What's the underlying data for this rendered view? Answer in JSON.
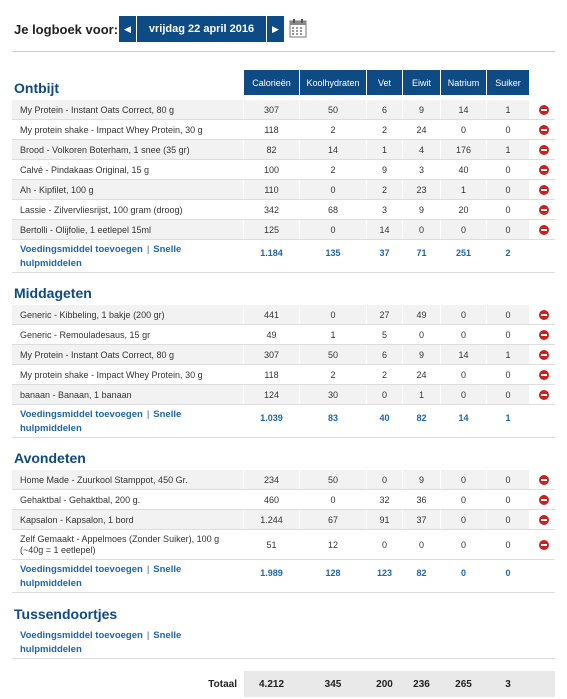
{
  "header": {
    "label": "Je logboek voor:",
    "date": "vrijdag 22 april 2016",
    "prev": "◀",
    "next": "▶",
    "calendar_icon": "calendar-icon"
  },
  "columns": [
    "Calorieën",
    "Koolhydraten",
    "Vet",
    "Eiwit",
    "Natrium",
    "Suiker"
  ],
  "add_link": "Voedingsmiddel toevoegen",
  "quick_link": "Snelle hulpmiddelen",
  "sections": [
    {
      "title": "Ontbijt",
      "rows": [
        {
          "name": "My Protein - Instant Oats Correct, 80 g",
          "v": [
            "307",
            "50",
            "6",
            "9",
            "14",
            "1"
          ]
        },
        {
          "name": "My protein shake - Impact Whey Protein, 30 g",
          "v": [
            "118",
            "2",
            "2",
            "24",
            "0",
            "0"
          ]
        },
        {
          "name": "Brood - Volkoren Boterham, 1 snee (35 gr)",
          "v": [
            "82",
            "14",
            "1",
            "4",
            "176",
            "1"
          ]
        },
        {
          "name": "Calvé - Pindakaas Original, 15 g",
          "v": [
            "100",
            "2",
            "9",
            "3",
            "40",
            "0"
          ]
        },
        {
          "name": "Ah - Kipfilet, 100 g",
          "v": [
            "110",
            "0",
            "2",
            "23",
            "1",
            "0"
          ]
        },
        {
          "name": "Lassie - Zilvervliesrijst, 100 gram (droog)",
          "v": [
            "342",
            "68",
            "3",
            "9",
            "20",
            "0"
          ]
        },
        {
          "name": "Bertolli - Olijfolie, 1 eetlepel 15ml",
          "v": [
            "125",
            "0",
            "14",
            "0",
            "0",
            "0"
          ]
        }
      ],
      "totals": [
        "1.184",
        "135",
        "37",
        "71",
        "251",
        "2"
      ]
    },
    {
      "title": "Middageten",
      "rows": [
        {
          "name": "Generic - Kibbeling, 1 bakje (200 gr)",
          "v": [
            "441",
            "0",
            "27",
            "49",
            "0",
            "0"
          ]
        },
        {
          "name": "Generic - Remouladesaus, 15 gr",
          "v": [
            "49",
            "1",
            "5",
            "0",
            "0",
            "0"
          ]
        },
        {
          "name": "My Protein - Instant Oats Correct, 80 g",
          "v": [
            "307",
            "50",
            "6",
            "9",
            "14",
            "1"
          ]
        },
        {
          "name": "My protein shake - Impact Whey Protein, 30 g",
          "v": [
            "118",
            "2",
            "2",
            "24",
            "0",
            "0"
          ]
        },
        {
          "name": "banaan - Banaan, 1 banaan",
          "v": [
            "124",
            "30",
            "0",
            "1",
            "0",
            "0"
          ]
        }
      ],
      "totals": [
        "1.039",
        "83",
        "40",
        "82",
        "14",
        "1"
      ]
    },
    {
      "title": "Avondeten",
      "rows": [
        {
          "name": "Home Made - Zuurkool Stamppot, 450 Gr.",
          "v": [
            "234",
            "50",
            "0",
            "9",
            "0",
            "0"
          ]
        },
        {
          "name": "Gehaktbal - Gehaktbal, 200 g.",
          "v": [
            "460",
            "0",
            "32",
            "36",
            "0",
            "0"
          ]
        },
        {
          "name": "Kapsalon - Kapsalon, 1 bord",
          "v": [
            "1.244",
            "67",
            "91",
            "37",
            "0",
            "0"
          ]
        },
        {
          "name": "Zelf Gemaakt - Appelmoes (Zonder Suiker), 100 g (~40g = 1 eetlepel)",
          "v": [
            "51",
            "12",
            "0",
            "0",
            "0",
            "0"
          ]
        }
      ],
      "totals": [
        "1.989",
        "128",
        "123",
        "82",
        "0",
        "0"
      ]
    },
    {
      "title": "Tussendoortjes",
      "rows": [],
      "totals": []
    }
  ],
  "grand_total": {
    "label": "Totaal",
    "values": [
      "4.212",
      "345",
      "200",
      "236",
      "265",
      "3"
    ]
  }
}
